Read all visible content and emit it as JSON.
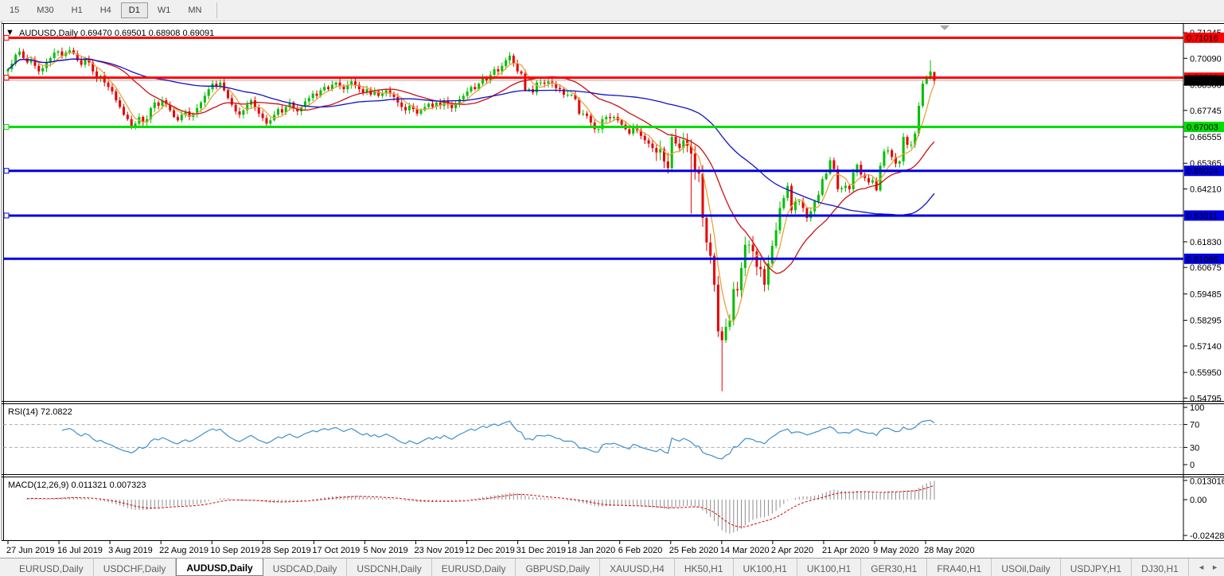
{
  "toolbar": {
    "timeframes": [
      "15",
      "M30",
      "H1",
      "H4",
      "D1",
      "W1",
      "MN"
    ],
    "active_timeframe": "D1"
  },
  "chart_data": {
    "type": "candlestick",
    "symbol": "AUDUSD,Daily",
    "ohlc_display": "0.69470 0.69501 0.68908 0.69091",
    "dropdown_icon": "▼",
    "up_color": "#00C000",
    "down_color": "#E80000",
    "shift_marker_color": "#A8A8A8",
    "first_open": 0.695,
    "closes": [
      0.696,
      0.6985,
      0.7025,
      0.704,
      0.701,
      0.699,
      0.7005,
      0.6975,
      0.695,
      0.6965,
      0.699,
      0.701,
      0.7035,
      0.704,
      0.702,
      0.7035,
      0.7045,
      0.703,
      0.7,
      0.698,
      0.7005,
      0.699,
      0.695,
      0.692,
      0.693,
      0.69,
      0.688,
      0.686,
      0.682,
      0.679,
      0.6755,
      0.6735,
      0.67,
      0.6715,
      0.6745,
      0.672,
      0.6735,
      0.6785,
      0.681,
      0.6795,
      0.682,
      0.68,
      0.6775,
      0.6745,
      0.673,
      0.6755,
      0.677,
      0.6745,
      0.676,
      0.6785,
      0.681,
      0.684,
      0.687,
      0.6895,
      0.688,
      0.69,
      0.6865,
      0.683,
      0.68,
      0.677,
      0.6755,
      0.6775,
      0.68,
      0.682,
      0.679,
      0.676,
      0.674,
      0.6715,
      0.673,
      0.6755,
      0.678,
      0.6765,
      0.679,
      0.681,
      0.6785,
      0.677,
      0.679,
      0.6815,
      0.683,
      0.685,
      0.684,
      0.6865,
      0.688,
      0.687,
      0.689,
      0.69,
      0.6885,
      0.687,
      0.689,
      0.6905,
      0.689,
      0.687,
      0.6855,
      0.687,
      0.6845,
      0.686,
      0.684,
      0.685,
      0.6865,
      0.685,
      0.6835,
      0.681,
      0.679,
      0.6775,
      0.6795,
      0.678,
      0.676,
      0.6775,
      0.679,
      0.6805,
      0.679,
      0.681,
      0.6795,
      0.682,
      0.68,
      0.6785,
      0.6805,
      0.6825,
      0.684,
      0.686,
      0.688,
      0.687,
      0.6895,
      0.692,
      0.691,
      0.6935,
      0.696,
      0.695,
      0.6975,
      0.7,
      0.7021,
      0.6985,
      0.695,
      0.694,
      0.6865,
      0.687,
      0.6855,
      0.69,
      0.69,
      0.6895,
      0.6905,
      0.6895,
      0.6875,
      0.687,
      0.6845,
      0.6845,
      0.6845,
      0.6825,
      0.676,
      0.676,
      0.675,
      0.672,
      0.669,
      0.669,
      0.6735,
      0.6745,
      0.674,
      0.6745,
      0.673,
      0.671,
      0.669,
      0.667,
      0.67,
      0.6685,
      0.666,
      0.664,
      0.6625,
      0.6605,
      0.6585,
      0.66,
      0.6545,
      0.6515,
      0.6655,
      0.6625,
      0.6605,
      0.664,
      0.6615,
      0.658,
      0.65,
      0.649,
      0.629,
      0.618,
      0.612,
      0.599,
      0.578,
      0.574,
      0.58,
      0.583,
      0.597,
      0.5965,
      0.6065,
      0.617,
      0.617,
      0.614,
      0.607,
      0.606,
      0.599,
      0.6085,
      0.6165,
      0.6235,
      0.6335,
      0.638,
      0.6435,
      0.6325,
      0.6365,
      0.6365,
      0.6335,
      0.629,
      0.632,
      0.6365,
      0.6395,
      0.6465,
      0.649,
      0.655,
      0.651,
      0.642,
      0.6425,
      0.6435,
      0.642,
      0.6495,
      0.653,
      0.6485,
      0.647,
      0.645,
      0.646,
      0.6415,
      0.6525,
      0.659,
      0.6595,
      0.6565,
      0.6535,
      0.6545,
      0.6655,
      0.662,
      0.662,
      0.667,
      0.6795,
      0.6895,
      0.692,
      0.695,
      0.69091
    ],
    "overrides": {
      "177": {
        "l": 0.631
      },
      "185": {
        "l": 0.551
      },
      "239": {
        "h": 0.7
      },
      "240": {
        "o": 0.6947,
        "h": 0.69501,
        "l": 0.68908,
        "c": 0.69091
      }
    },
    "price_ticks": [
      0.71245,
      0.7009,
      0.689,
      0.67745,
      0.66555,
      0.65365,
      0.6421,
      0.6302,
      0.6183,
      0.60675,
      0.59485,
      0.58295,
      0.5714,
      0.5595,
      0.54795
    ],
    "bid_price": 0.69091,
    "bid_line_color": "#BBBBBB",
    "hlines": [
      {
        "price": 0.71016,
        "label": "0.71016",
        "color": "#FF0000",
        "text_color": "#FFFFFF",
        "width": 3,
        "handle": true
      },
      {
        "price": 0.69218,
        "label": "0.69218",
        "color": "#FF0000",
        "text_color": "#FFFFFF",
        "width": 3,
        "handle": true
      },
      {
        "price": 0.67003,
        "label": "0.67003",
        "color": "#00DD00",
        "text_color": "#000000",
        "width": 3,
        "handle": true
      },
      {
        "price": 0.65024,
        "label": "0.65024",
        "color": "#0000E0",
        "text_color": "#FFFFFF",
        "width": 3,
        "handle": true
      },
      {
        "price": 0.63011,
        "label": "0.63011",
        "color": "#0000E0",
        "text_color": "#FFFFFF",
        "width": 3,
        "handle": true
      },
      {
        "price": 0.61065,
        "label": "0.61065",
        "color": "#0000E0",
        "text_color": "#FFFFFF",
        "width": 3,
        "handle": false
      }
    ],
    "moving_averages": [
      {
        "name": "ma-fast",
        "period": 5,
        "color": "#E8A33C"
      },
      {
        "name": "ma-mid",
        "period": 20,
        "color": "#CC1111"
      },
      {
        "name": "ma-slow",
        "period": 55,
        "color": "#1111CC"
      }
    ],
    "rsi": {
      "label": "RSI(14) 72.0822",
      "period": 14,
      "ticks": [
        100,
        70,
        30,
        0
      ],
      "levels": [
        70,
        30
      ],
      "line_color": "#3E8FD0"
    },
    "macd": {
      "label": "MACD(12,26,9) 0.011321 0.007323",
      "fast": 12,
      "slow": 26,
      "signal": 9,
      "ticks": [
        {
          "text": "0.013016",
          "value": 0.013016
        },
        {
          "text": "0.00",
          "value": 0
        },
        {
          "text": "-0.024282",
          "value": -0.024282
        }
      ],
      "hist_color": "#8C8C8C",
      "signal_color": "#DD0000"
    },
    "dates": [
      "27 Jun 2019",
      "16 Jul 2019",
      "3 Aug 2019",
      "22 Aug 2019",
      "10 Sep 2019",
      "28 Sep 2019",
      "17 Oct 2019",
      "5 Nov 2019",
      "23 Nov 2019",
      "12 Dec 2019",
      "31 Dec 2019",
      "18 Jan 2020",
      "6 Feb 2020",
      "25 Feb 2020",
      "14 Mar 2020",
      "2 Apr 2020",
      "21 Apr 2020",
      "9 May 2020",
      "28 May 2020"
    ]
  },
  "tabs_bar": {
    "tabs": [
      "EURUSD,Daily",
      "USDCHF,Daily",
      "AUDUSD,Daily",
      "USDCAD,Daily",
      "USDCNH,Daily",
      "EURUSD,Daily",
      "GBPUSD,Daily",
      "XAUUSD,H4",
      "HK50,H1",
      "UK100,H1",
      "UK100,H1",
      "GER30,H1",
      "FRA40,H1",
      "USOil,Daily",
      "USDJPY,H1",
      "DJ30,H1"
    ],
    "active_index": 2,
    "left_arrow": "◄",
    "right_arrow": "►"
  }
}
